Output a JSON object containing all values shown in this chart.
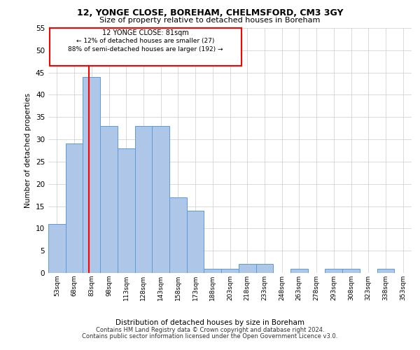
{
  "title1": "12, YONGE CLOSE, BOREHAM, CHELMSFORD, CM3 3GY",
  "title2": "Size of property relative to detached houses in Boreham",
  "xlabel": "Distribution of detached houses by size in Boreham",
  "ylabel": "Number of detached properties",
  "footer1": "Contains HM Land Registry data © Crown copyright and database right 2024.",
  "footer2": "Contains public sector information licensed under the Open Government Licence v3.0.",
  "annotation_title": "12 YONGE CLOSE: 81sqm",
  "annotation_line1": "← 12% of detached houses are smaller (27)",
  "annotation_line2": "88% of semi-detached houses are larger (192) →",
  "bar_color": "#aec6e8",
  "bar_edge_color": "#5b9bd5",
  "red_line_x": 81,
  "categories": [
    53,
    68,
    83,
    98,
    113,
    128,
    143,
    158,
    173,
    188,
    203,
    218,
    233,
    248,
    263,
    278,
    293,
    308,
    323,
    338,
    353
  ],
  "values": [
    11,
    29,
    44,
    33,
    28,
    33,
    33,
    17,
    14,
    1,
    1,
    2,
    2,
    0,
    1,
    0,
    1,
    1,
    0,
    1,
    0
  ],
  "ylim": [
    0,
    55
  ],
  "xlim": [
    45.5,
    360.5
  ],
  "bin_width": 15,
  "background_color": "#ffffff",
  "grid_color": "#cccccc"
}
